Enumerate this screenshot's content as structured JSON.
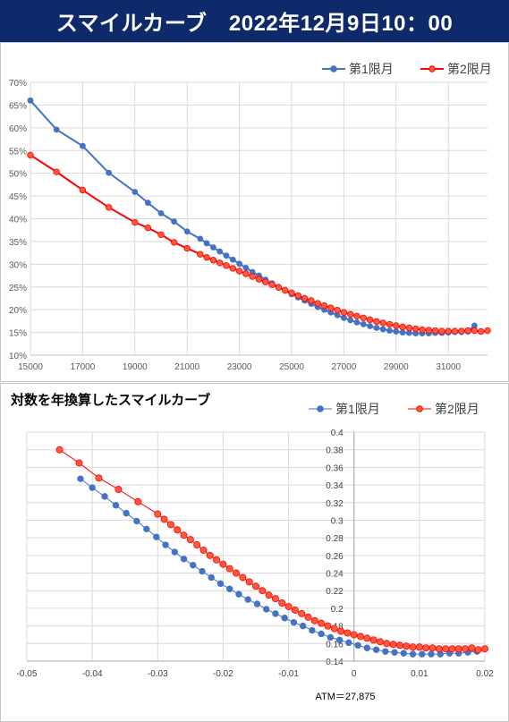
{
  "header": {
    "title": "スマイルカーブ　2022年12月9日10：00"
  },
  "colors": {
    "series1": "#4472c4",
    "series2": "#ff0000",
    "series2_fill": "#ff5a3c",
    "header_bg": "#0f2a6b"
  },
  "chart_data": [
    {
      "type": "line",
      "title": "",
      "xlabel": "",
      "ylabel": "",
      "xlim": [
        15000,
        32500
      ],
      "ylim": [
        10,
        70
      ],
      "y_unit": "%",
      "x_ticks": [
        15000,
        17000,
        19000,
        21000,
        23000,
        25000,
        27000,
        29000,
        31000
      ],
      "y_ticks": [
        10,
        15,
        20,
        25,
        30,
        35,
        40,
        45,
        50,
        55,
        60,
        65,
        70
      ],
      "y_tick_labels": [
        "10%",
        "15%",
        "20%",
        "25%",
        "30%",
        "35%",
        "40%",
        "45%",
        "50%",
        "55%",
        "60%",
        "65%",
        "70%"
      ],
      "legend_position": "top-right",
      "grid": true,
      "series": [
        {
          "name": "第1限月",
          "x": [
            15000,
            16000,
            17000,
            18000,
            19000,
            19500,
            20000,
            20500,
            21000,
            21500,
            21750,
            22000,
            22250,
            22500,
            22750,
            23000,
            23250,
            23500,
            23750,
            24000,
            24250,
            24500,
            24750,
            25000,
            25250,
            25500,
            25750,
            26000,
            26250,
            26500,
            26750,
            27000,
            27250,
            27500,
            27750,
            28000,
            28250,
            28500,
            28750,
            29000,
            29250,
            29500,
            29750,
            30000,
            30250,
            30500,
            30750,
            31000,
            31250,
            31500,
            31750,
            32000,
            32250,
            32500
          ],
          "y": [
            66.0,
            59.6,
            56.0,
            50.1,
            45.9,
            43.5,
            41.2,
            39.4,
            37.2,
            35.6,
            34.6,
            33.7,
            32.8,
            31.9,
            31.0,
            30.1,
            29.2,
            28.3,
            27.5,
            26.6,
            25.8,
            25.0,
            24.2,
            23.4,
            22.7,
            22.0,
            21.3,
            20.6,
            20.0,
            19.4,
            18.8,
            18.2,
            17.7,
            17.2,
            16.8,
            16.4,
            16.0,
            15.7,
            15.4,
            15.2,
            15.0,
            14.9,
            14.8,
            14.8,
            14.8,
            14.9,
            14.9,
            15.0,
            15.1,
            15.1,
            15.2,
            16.5,
            null,
            null
          ]
        },
        {
          "name": "第2限月",
          "x": [
            15000,
            16000,
            17000,
            18000,
            19000,
            19500,
            20000,
            20500,
            21000,
            21500,
            21750,
            22000,
            22250,
            22500,
            22750,
            23000,
            23250,
            23500,
            23750,
            24000,
            24250,
            24500,
            24750,
            25000,
            25250,
            25500,
            25750,
            26000,
            26250,
            26500,
            26750,
            27000,
            27250,
            27500,
            27750,
            28000,
            28250,
            28500,
            28750,
            29000,
            29250,
            29500,
            29750,
            30000,
            30250,
            30500,
            30750,
            31000,
            31250,
            31500,
            31750,
            32000,
            32250,
            32500
          ],
          "y": [
            54.0,
            50.3,
            46.3,
            42.5,
            39.2,
            38.0,
            36.5,
            34.8,
            33.5,
            32.2,
            31.5,
            30.9,
            30.3,
            29.7,
            29.1,
            28.5,
            27.9,
            27.3,
            26.7,
            26.1,
            25.5,
            24.9,
            24.3,
            23.7,
            23.1,
            22.5,
            22.0,
            21.4,
            20.9,
            20.4,
            19.9,
            19.4,
            19.0,
            18.6,
            18.2,
            17.8,
            17.4,
            17.1,
            16.8,
            16.5,
            16.2,
            16.0,
            15.8,
            15.6,
            15.5,
            15.4,
            15.3,
            15.3,
            15.3,
            15.3,
            15.4,
            15.4,
            15.2,
            15.4
          ]
        }
      ]
    },
    {
      "type": "scatter",
      "title": "対数を年換算したスマイルカーブ",
      "xlabel": "",
      "ylabel": "",
      "xlim": [
        -0.05,
        0.02
      ],
      "ylim": [
        0.14,
        0.4
      ],
      "x_ticks": [
        -0.05,
        -0.04,
        -0.03,
        -0.02,
        -0.01,
        0,
        0.01,
        0.02
      ],
      "x_tick_labels": [
        "-0.05",
        "-0.04",
        "-0.03",
        "-0.02",
        "-0.01",
        "0",
        "0.01",
        "0.02"
      ],
      "y_ticks": [
        0.14,
        0.16,
        0.18,
        0.2,
        0.22,
        0.24,
        0.26,
        0.28,
        0.3,
        0.32,
        0.34,
        0.36,
        0.38,
        0.4
      ],
      "y_tick_labels": [
        "0.14",
        "0.16",
        "0.18",
        "0.2",
        "0.22",
        "0.24",
        "0.26",
        "0.28",
        "0.3",
        "0.32",
        "0.34",
        "0.36",
        "0.38",
        "0.4"
      ],
      "annotation": "ATM＝27,875",
      "legend_position": "top-right",
      "grid": true,
      "series": [
        {
          "name": "第1限月",
          "x": [
            -0.0418,
            -0.04,
            -0.0381,
            -0.0364,
            -0.0348,
            -0.0332,
            -0.0317,
            -0.0302,
            -0.0288,
            -0.0274,
            -0.026,
            -0.0246,
            -0.0232,
            -0.0218,
            -0.0204,
            -0.019,
            -0.0176,
            -0.0162,
            -0.0148,
            -0.0134,
            -0.012,
            -0.0106,
            -0.0092,
            -0.0078,
            -0.0064,
            -0.005,
            -0.0036,
            -0.0022,
            -0.0008,
            0.0006,
            0.002,
            0.0034,
            0.0048,
            0.0062,
            0.0076,
            0.009,
            0.0104,
            0.0118,
            0.0132,
            0.0146,
            0.016,
            0.0174,
            0.0188
          ],
          "y": [
            0.347,
            0.337,
            0.327,
            0.317,
            0.308,
            0.299,
            0.29,
            0.281,
            0.272,
            0.264,
            0.256,
            0.249,
            0.242,
            0.235,
            0.228,
            0.222,
            0.216,
            0.21,
            0.205,
            0.199,
            0.194,
            0.189,
            0.184,
            0.18,
            0.175,
            0.171,
            0.167,
            0.164,
            0.161,
            0.158,
            0.155,
            0.153,
            0.151,
            0.15,
            0.149,
            0.148,
            0.148,
            0.148,
            0.148,
            0.149,
            0.149,
            0.15,
            0.151
          ]
        },
        {
          "name": "第2限月",
          "x": [
            -0.045,
            -0.042,
            -0.039,
            -0.036,
            -0.033,
            -0.03,
            -0.029,
            -0.028,
            -0.027,
            -0.026,
            -0.025,
            -0.024,
            -0.023,
            -0.022,
            -0.021,
            -0.02,
            -0.019,
            -0.018,
            -0.017,
            -0.016,
            -0.015,
            -0.014,
            -0.013,
            -0.012,
            -0.011,
            -0.01,
            -0.009,
            -0.008,
            -0.007,
            -0.006,
            -0.005,
            -0.004,
            -0.003,
            -0.002,
            -0.001,
            0.0,
            0.001,
            0.002,
            0.003,
            0.004,
            0.005,
            0.006,
            0.007,
            0.008,
            0.009,
            0.01,
            0.011,
            0.012,
            0.013,
            0.014,
            0.015,
            0.016,
            0.017,
            0.018,
            0.019,
            0.02
          ],
          "y": [
            0.38,
            0.365,
            0.348,
            0.335,
            0.321,
            0.307,
            0.301,
            0.295,
            0.289,
            0.283,
            0.278,
            0.272,
            0.266,
            0.26,
            0.255,
            0.25,
            0.245,
            0.24,
            0.235,
            0.23,
            0.225,
            0.22,
            0.215,
            0.211,
            0.206,
            0.202,
            0.198,
            0.194,
            0.19,
            0.186,
            0.183,
            0.18,
            0.177,
            0.174,
            0.172,
            0.17,
            0.168,
            0.166,
            0.164,
            0.162,
            0.16,
            0.159,
            0.158,
            0.157,
            0.156,
            0.156,
            0.155,
            0.155,
            0.154,
            0.154,
            0.154,
            0.154,
            0.154,
            0.155,
            0.153,
            0.154
          ]
        }
      ]
    }
  ]
}
